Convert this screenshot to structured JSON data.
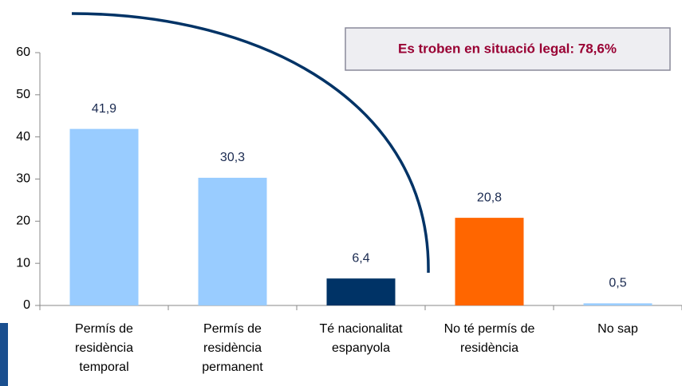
{
  "chart_data": {
    "type": "bar",
    "categories": [
      "Permís de\nresidència\ntemporal",
      "Permís de\nresidència\npermanent",
      "Té nacionalitat\nespanyola",
      "No té permís de\nresidència",
      "No sap"
    ],
    "values": [
      41.9,
      30.3,
      6.4,
      20.8,
      0.5
    ],
    "value_labels": [
      "41,9",
      "30,3",
      "6,4",
      "20,8",
      "0,5"
    ],
    "colors": [
      "#99ccff",
      "#99ccff",
      "#003366",
      "#ff6600",
      "#99ccff"
    ],
    "ylim": [
      0,
      60
    ],
    "yticks": [
      0,
      10,
      20,
      30,
      40,
      50,
      60
    ],
    "grid": false,
    "annotation": "Es troben en situació legal: 78,6%"
  }
}
